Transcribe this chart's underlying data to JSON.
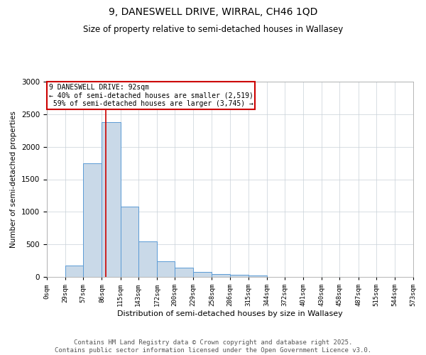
{
  "title_line1": "9, DANESWELL DRIVE, WIRRAL, CH46 1QD",
  "title_line2": "Size of property relative to semi-detached houses in Wallasey",
  "xlabel": "Distribution of semi-detached houses by size in Wallasey",
  "ylabel": "Number of semi-detached properties",
  "footer_line1": "Contains HM Land Registry data © Crown copyright and database right 2025.",
  "footer_line2": "Contains public sector information licensed under the Open Government Licence v3.0.",
  "property_size": 92,
  "pct_smaller": 40,
  "pct_larger": 59,
  "count_smaller": 2519,
  "count_larger": 3745,
  "bin_edges": [
    0,
    29,
    57,
    86,
    115,
    143,
    172,
    200,
    229,
    258,
    286,
    315,
    344,
    372,
    401,
    430,
    458,
    487,
    515,
    544,
    573
  ],
  "bar_heights": [
    0,
    175,
    1750,
    2380,
    1075,
    550,
    240,
    140,
    80,
    40,
    30,
    20,
    0,
    0,
    0,
    0,
    0,
    0,
    0,
    0
  ],
  "bar_color": "#c9d9e8",
  "bar_edge_color": "#5b9bd5",
  "vline_color": "#cc0000",
  "vline_x": 92,
  "ylim": [
    0,
    3000
  ],
  "yticks": [
    0,
    500,
    1000,
    1500,
    2000,
    2500,
    3000
  ],
  "annotation_box_color": "#cc0000",
  "background_color": "#ffffff",
  "grid_color": "#c8d0d8"
}
